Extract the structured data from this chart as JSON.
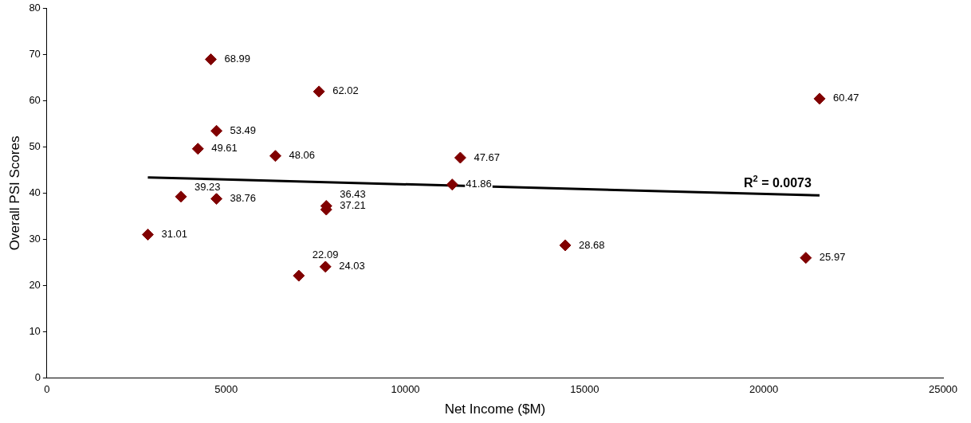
{
  "chart_data": {
    "type": "scatter",
    "xlabel": "Net Income ($M)",
    "ylabel": "Overall PSI Scores",
    "xlim": [
      0,
      25000
    ],
    "xticks": [
      0,
      5000,
      10000,
      15000,
      20000,
      25000
    ],
    "ylim": [
      0,
      80
    ],
    "yticks": [
      0,
      10,
      20,
      30,
      40,
      50,
      60,
      70,
      80
    ],
    "grid": false,
    "legend": false,
    "marker": "diamond",
    "data_labels": true,
    "series": [
      {
        "color": "#800000",
        "x": [
          4572,
          7590,
          21554,
          4730,
          4212,
          6374,
          11532,
          11306,
          3739,
          4730,
          7793,
          7793,
          2815,
          14459,
          21171,
          7770,
          7027
        ],
        "values": [
          68.99,
          62.02,
          60.47,
          53.49,
          49.61,
          48.06,
          47.67,
          41.86,
          39.23,
          38.76,
          37.21,
          36.43,
          31.01,
          28.68,
          25.97,
          24.03,
          22.09
        ]
      },
      {
        "type": "line",
        "color": "#000000",
        "marker": "none",
        "data_labels": false,
        "x": [
          2815,
          21554
        ],
        "values": [
          43.4,
          39.5
        ]
      }
    ],
    "annotations": [
      "R$^{2}$ = 0.0073"
    ]
  }
}
